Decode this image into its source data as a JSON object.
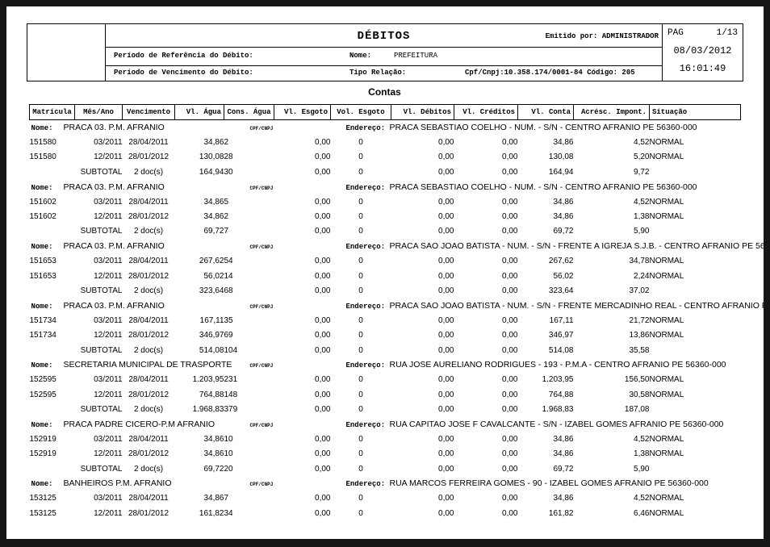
{
  "page": {
    "title": "DÉBITOS",
    "emitted_by": "Emitido por: ADMINISTRADOR",
    "pag_label": "PAG",
    "page_number": "1/13",
    "date": "08/03/2012",
    "time": "16:01:49",
    "ref_label": "Período de Referência do Débito:",
    "venc_label": "Período de Vencimento do Débito:",
    "nome_label": "Nome:",
    "nome_value": "PREFEITURA",
    "tipo_label": "Tipo Relação:",
    "cpf_value": "Cpf/Cnpj:10.358.174/0001-84 Código: 205",
    "section_title": "Contas"
  },
  "table": {
    "columns": [
      "Matrícula",
      "Mês/Ano",
      "Vencimento",
      "Vl. Água",
      "Cons. Água",
      "Vl. Esgoto",
      "Vol. Esgoto",
      "Vl. Débitos",
      "Vl. Créditos",
      "Vl. Conta",
      "Acrésc. Impont.",
      "Situação"
    ],
    "nome_label": "Nome:",
    "cpf_label": "CPF/CNPJ",
    "endereco_label": "Endereço:",
    "subtotal_label": "SUBTOTAL",
    "groups": [
      {
        "nome": "PRACA 03.  P.M. AFRANIO",
        "endereco": "PRACA SEBASTIAO COELHO - NUM. - S/N - CENTRO AFRANIO PE 56360-000",
        "rows": [
          {
            "matricula": "151580",
            "mes": "03/2011",
            "venc": "28/04/2011",
            "vl_agua": "34,86",
            "cons": "2",
            "vl_esgoto": "0,00",
            "vol_esgoto": "0",
            "vl_debitos": "0,00",
            "vl_creditos": "0,00",
            "vl_conta": "34,86",
            "acresc": "4,52",
            "situacao": "NORMAL"
          },
          {
            "matricula": "151580",
            "mes": "12/2011",
            "venc": "28/01/2012",
            "vl_agua": "130,08",
            "cons": "28",
            "vl_esgoto": "0,00",
            "vol_esgoto": "0",
            "vl_debitos": "0,00",
            "vl_creditos": "0,00",
            "vl_conta": "130,08",
            "acresc": "5,20",
            "situacao": "NORMAL"
          }
        ],
        "subtotal": {
          "docs": "2 doc(s)",
          "vl_agua": "164,94",
          "cons": "30",
          "vl_esgoto": "0,00",
          "vol_esgoto": "0",
          "vl_debitos": "0,00",
          "vl_creditos": "0,00",
          "vl_conta": "164,94",
          "acresc": "9,72"
        }
      },
      {
        "nome": "PRACA 03.  P.M. AFRANIO",
        "endereco": "PRACA SEBASTIAO COELHO - NUM. - S/N - CENTRO AFRANIO PE 56360-000",
        "rows": [
          {
            "matricula": "151602",
            "mes": "03/2011",
            "venc": "28/04/2011",
            "vl_agua": "34,86",
            "cons": "5",
            "vl_esgoto": "0,00",
            "vol_esgoto": "0",
            "vl_debitos": "0,00",
            "vl_creditos": "0,00",
            "vl_conta": "34,86",
            "acresc": "4,52",
            "situacao": "NORMAL"
          },
          {
            "matricula": "151602",
            "mes": "12/2011",
            "venc": "28/01/2012",
            "vl_agua": "34,86",
            "cons": "2",
            "vl_esgoto": "0,00",
            "vol_esgoto": "0",
            "vl_debitos": "0,00",
            "vl_creditos": "0,00",
            "vl_conta": "34,86",
            "acresc": "1,38",
            "situacao": "NORMAL"
          }
        ],
        "subtotal": {
          "docs": "2 doc(s)",
          "vl_agua": "69,72",
          "cons": "7",
          "vl_esgoto": "0,00",
          "vol_esgoto": "0",
          "vl_debitos": "0,00",
          "vl_creditos": "0,00",
          "vl_conta": "69,72",
          "acresc": "5,90"
        }
      },
      {
        "nome": "PRACA 03.  P.M. AFRANIO",
        "endereco": "PRACA SAO JOAO BATISTA - NUM. - S/N - FRENTE A IGREJA S.J.B. - CENTRO AFRANIO PE 56360-",
        "rows": [
          {
            "matricula": "151653",
            "mes": "03/2011",
            "venc": "28/04/2011",
            "vl_agua": "267,62",
            "cons": "54",
            "vl_esgoto": "0,00",
            "vol_esgoto": "0",
            "vl_debitos": "0,00",
            "vl_creditos": "0,00",
            "vl_conta": "267,62",
            "acresc": "34,78",
            "situacao": "NORMAL"
          },
          {
            "matricula": "151653",
            "mes": "12/2011",
            "venc": "28/01/2012",
            "vl_agua": "56,02",
            "cons": "14",
            "vl_esgoto": "0,00",
            "vol_esgoto": "0",
            "vl_debitos": "0,00",
            "vl_creditos": "0,00",
            "vl_conta": "56,02",
            "acresc": "2,24",
            "situacao": "NORMAL"
          }
        ],
        "subtotal": {
          "docs": "2 doc(s)",
          "vl_agua": "323,64",
          "cons": "68",
          "vl_esgoto": "0,00",
          "vol_esgoto": "0",
          "vl_debitos": "0,00",
          "vl_creditos": "0,00",
          "vl_conta": "323,64",
          "acresc": "37,02"
        }
      },
      {
        "nome": "PRACA 03.  P.M. AFRANIO",
        "endereco": "PRACA SAO JOAO BATISTA - NUM. - S/N - FRENTE MERCADINHO REAL - CENTRO AFRANIO PE",
        "rows": [
          {
            "matricula": "151734",
            "mes": "03/2011",
            "venc": "28/04/2011",
            "vl_agua": "167,11",
            "cons": "35",
            "vl_esgoto": "0,00",
            "vol_esgoto": "0",
            "vl_debitos": "0,00",
            "vl_creditos": "0,00",
            "vl_conta": "167,11",
            "acresc": "21,72",
            "situacao": "NORMAL"
          },
          {
            "matricula": "151734",
            "mes": "12/2011",
            "venc": "28/01/2012",
            "vl_agua": "346,97",
            "cons": "69",
            "vl_esgoto": "0,00",
            "vol_esgoto": "0",
            "vl_debitos": "0,00",
            "vl_creditos": "0,00",
            "vl_conta": "346,97",
            "acresc": "13,86",
            "situacao": "NORMAL"
          }
        ],
        "subtotal": {
          "docs": "2 doc(s)",
          "vl_agua": "514,08",
          "cons": "104",
          "vl_esgoto": "0,00",
          "vol_esgoto": "0",
          "vl_debitos": "0,00",
          "vl_creditos": "0,00",
          "vl_conta": "514,08",
          "acresc": "35,58"
        }
      },
      {
        "nome": "SECRETARIA MUNICIPAL DE TRASPORTE",
        "endereco": "RUA JOSE AURELIANO RODRIGUES - 193 - P.M.A - CENTRO AFRANIO PE 56360-000",
        "rows": [
          {
            "matricula": "152595",
            "mes": "03/2011",
            "venc": "28/04/2011",
            "vl_agua": "1.203,95",
            "cons": "231",
            "vl_esgoto": "0,00",
            "vol_esgoto": "0",
            "vl_debitos": "0,00",
            "vl_creditos": "0,00",
            "vl_conta": "1.203,95",
            "acresc": "156,50",
            "situacao": "NORMAL"
          },
          {
            "matricula": "152595",
            "mes": "12/2011",
            "venc": "28/01/2012",
            "vl_agua": "764,88",
            "cons": "148",
            "vl_esgoto": "0,00",
            "vol_esgoto": "0",
            "vl_debitos": "0,00",
            "vl_creditos": "0,00",
            "vl_conta": "764,88",
            "acresc": "30,58",
            "situacao": "NORMAL"
          }
        ],
        "subtotal": {
          "docs": "2 doc(s)",
          "vl_agua": "1.968,83",
          "cons": "379",
          "vl_esgoto": "0,00",
          "vol_esgoto": "0",
          "vl_debitos": "0,00",
          "vl_creditos": "0,00",
          "vl_conta": "1.968,83",
          "acresc": "187,08"
        }
      },
      {
        "nome": "PRACA PADRE CICERO-P.M AFRANIO",
        "endereco": "RUA CAPITAO JOSE F CAVALCANTE - S/N - IZABEL GOMES AFRANIO PE 56360-000",
        "rows": [
          {
            "matricula": "152919",
            "mes": "03/2011",
            "venc": "28/04/2011",
            "vl_agua": "34,86",
            "cons": "10",
            "vl_esgoto": "0,00",
            "vol_esgoto": "0",
            "vl_debitos": "0,00",
            "vl_creditos": "0,00",
            "vl_conta": "34,86",
            "acresc": "4,52",
            "situacao": "NORMAL"
          },
          {
            "matricula": "152919",
            "mes": "12/2011",
            "venc": "28/01/2012",
            "vl_agua": "34,86",
            "cons": "10",
            "vl_esgoto": "0,00",
            "vol_esgoto": "0",
            "vl_debitos": "0,00",
            "vl_creditos": "0,00",
            "vl_conta": "34,86",
            "acresc": "1,38",
            "situacao": "NORMAL"
          }
        ],
        "subtotal": {
          "docs": "2 doc(s)",
          "vl_agua": "69,72",
          "cons": "20",
          "vl_esgoto": "0,00",
          "vol_esgoto": "0",
          "vl_debitos": "0,00",
          "vl_creditos": "0,00",
          "vl_conta": "69,72",
          "acresc": "5,90"
        }
      },
      {
        "nome": "BANHEIROS P.M. AFRANIO",
        "endereco": "RUA MARCOS FERREIRA GOMES - 90 - IZABEL GOMES AFRANIO PE 56360-000",
        "rows": [
          {
            "matricula": "153125",
            "mes": "03/2011",
            "venc": "28/04/2011",
            "vl_agua": "34,86",
            "cons": "7",
            "vl_esgoto": "0,00",
            "vol_esgoto": "0",
            "vl_debitos": "0,00",
            "vl_creditos": "0,00",
            "vl_conta": "34,86",
            "acresc": "4,52",
            "situacao": "NORMAL"
          },
          {
            "matricula": "153125",
            "mes": "12/2011",
            "venc": "28/01/2012",
            "vl_agua": "161,82",
            "cons": "34",
            "vl_esgoto": "0,00",
            "vol_esgoto": "0",
            "vl_debitos": "0,00",
            "vl_creditos": "0,00",
            "vl_conta": "161,82",
            "acresc": "6,46",
            "situacao": "NORMAL"
          }
        ],
        "subtotal": null
      }
    ]
  }
}
